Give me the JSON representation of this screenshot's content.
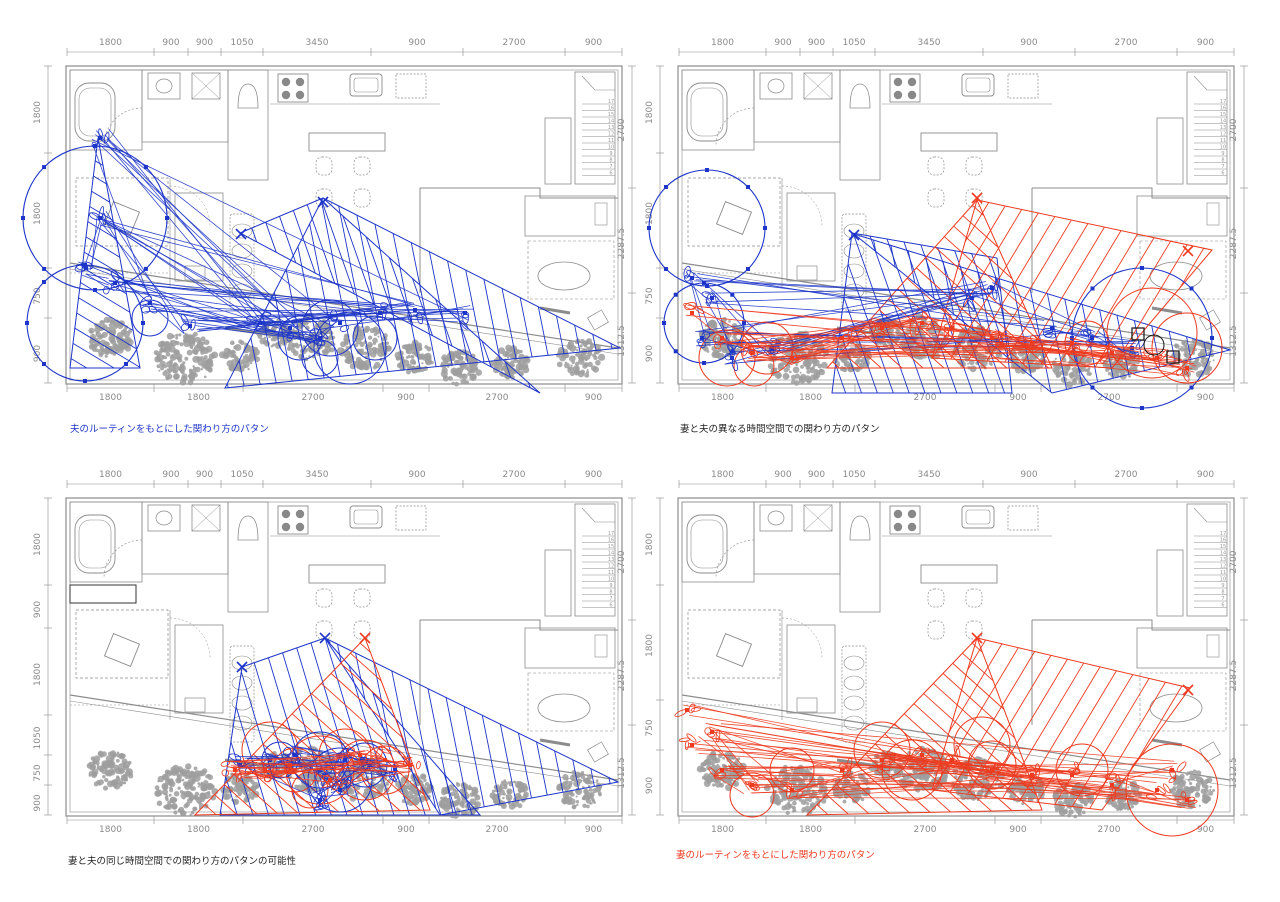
{
  "colors": {
    "husband": "#1d35c8",
    "wife": "#ee3a1e",
    "plan_line": "#8c8c8c",
    "foliage": "#9e9e9e",
    "dimension": "#8a8a8a"
  },
  "dimensions": {
    "top": [
      "1800",
      "900",
      "900",
      "1050",
      "3450",
      "900",
      "2700",
      "900"
    ],
    "bottom": [
      "1800",
      "1800",
      "2700",
      "900",
      "2700",
      "900"
    ],
    "left_top_row": [
      "1800",
      "1800",
      "750",
      "900"
    ],
    "left_bottom_row": [
      "1800",
      "900",
      "1800",
      "1050",
      "750",
      "900"
    ],
    "right": [
      "2700",
      "2287.5",
      "1312.5"
    ],
    "stair_steps": [
      "17",
      "16",
      "15",
      "14",
      "13",
      "12",
      "11",
      "10",
      "9",
      "8",
      "7",
      "6"
    ]
  },
  "panels": [
    {
      "id": "husband",
      "caption": "夫のルーティンをもとにした関わり方のパタン",
      "caption_color": "#1d35c8"
    },
    {
      "id": "different_time",
      "caption": "妻と夫の異なる時間空間での関わり方のパタン",
      "caption_color": "#222222"
    },
    {
      "id": "same_time",
      "caption": "妻と夫の同じ時間空間での関わり方のパタンの可能性",
      "caption_color": "#222222"
    },
    {
      "id": "wife",
      "caption": "妻のルーティンをもとにした関わり方のパタン",
      "caption_color": "#ee3a1e"
    }
  ]
}
